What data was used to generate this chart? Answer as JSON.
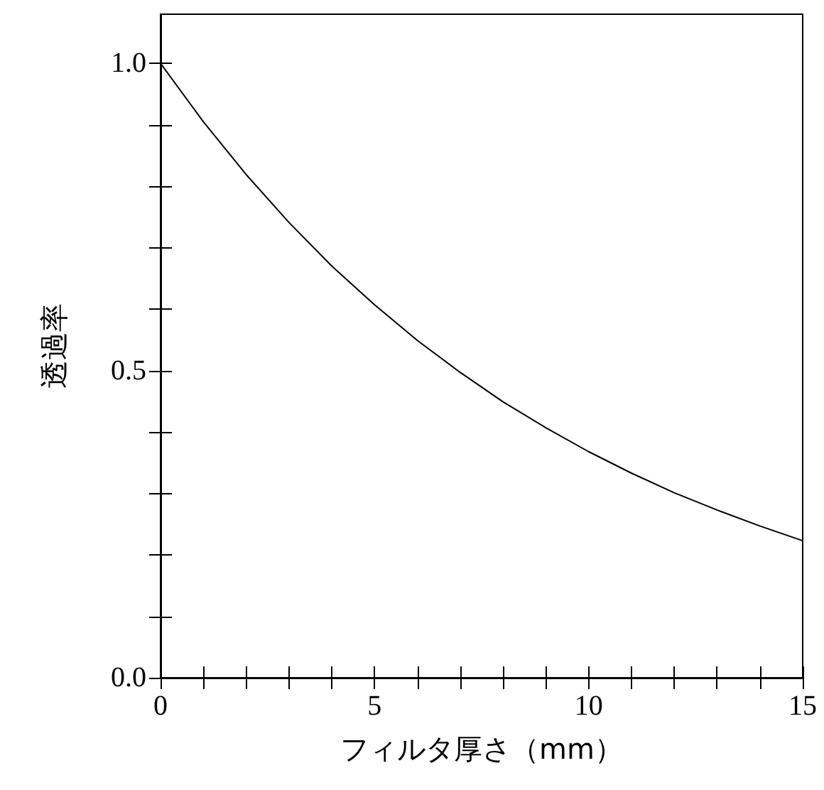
{
  "chart_data": {
    "type": "line",
    "xlabel": "フィルタ厚さ（mm）",
    "ylabel": "透過率",
    "x": [
      0,
      1,
      2,
      3,
      4,
      5,
      6,
      7,
      8,
      9,
      10,
      11,
      12,
      13,
      14,
      15
    ],
    "series": [
      {
        "color": "#000000",
        "values": [
          1.0,
          0.905,
          0.819,
          0.741,
          0.67,
          0.607,
          0.549,
          0.497,
          0.449,
          0.407,
          0.368,
          0.333,
          0.301,
          0.273,
          0.247,
          0.223
        ]
      }
    ],
    "xlim": [
      0,
      15
    ],
    "xticks": [
      0,
      {
        "value": 1,
        "label": null
      },
      {
        "value": 2,
        "label": null
      },
      {
        "value": 3,
        "label": null
      },
      {
        "value": 4,
        "label": null
      },
      5,
      {
        "value": 6,
        "label": null
      },
      {
        "value": 7,
        "label": null
      },
      {
        "value": 8,
        "label": null
      },
      {
        "value": 9,
        "label": null
      },
      10,
      {
        "value": 11,
        "label": null
      },
      {
        "value": 12,
        "label": null
      },
      {
        "value": 13,
        "label": null
      },
      {
        "value": 14,
        "label": null
      },
      15
    ],
    "ylim": [
      0,
      1.08
    ],
    "yticks": [
      {
        "value": 0,
        "label": "0.0"
      },
      {
        "value": 0.1,
        "label": null
      },
      {
        "value": 0.2,
        "label": null
      },
      {
        "value": 0.3,
        "label": null
      },
      {
        "value": 0.4,
        "label": null
      },
      {
        "value": 0.5,
        "label": "0.5"
      },
      {
        "value": 0.6,
        "label": null
      },
      {
        "value": 0.7,
        "label": null
      },
      {
        "value": 0.8,
        "label": null
      },
      {
        "value": 0.9,
        "label": null
      },
      {
        "value": 1.0,
        "label": "1.0"
      }
    ],
    "grid": false,
    "marker": "none",
    "line_style": "solid"
  }
}
